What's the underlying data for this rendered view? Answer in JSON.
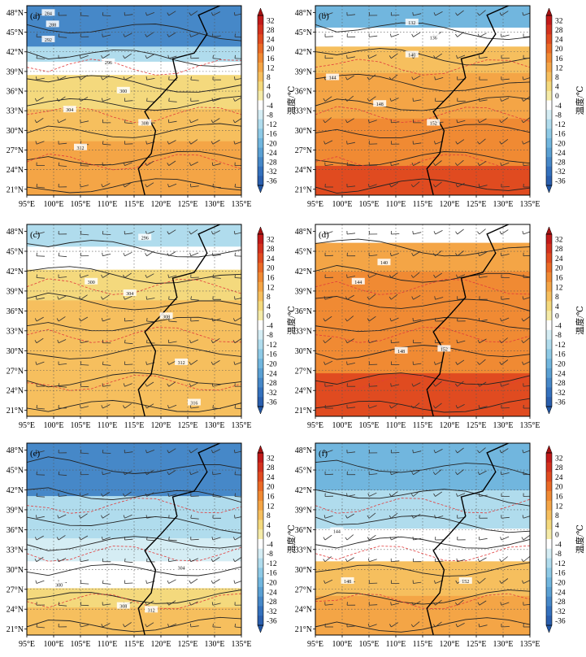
{
  "figure": {
    "colorbar_unit": "温度/℃",
    "colorbar_ticks": [
      32,
      28,
      24,
      20,
      16,
      12,
      8,
      4,
      0,
      -4,
      -8,
      -12,
      -16,
      -20,
      -24,
      -28,
      -32,
      -36
    ],
    "colorbar_colors": [
      "#c21a1a",
      "#d3311e",
      "#e04b20",
      "#ea6a26",
      "#f08a33",
      "#f4a546",
      "#f6bf5e",
      "#f4d97d",
      "#f5eba8",
      "#ffffff",
      "#d5edf4",
      "#b0dced",
      "#8ecae6",
      "#71b6de",
      "#5aa0d3",
      "#4688c8",
      "#3471bd",
      "#2a5fae"
    ]
  },
  "chart_data": [
    {
      "type": "heatmap",
      "panel_label": "(a)",
      "x_ticks": [
        "95°E",
        "100°E",
        "105°E",
        "110°E",
        "115°E",
        "120°E",
        "125°E",
        "130°E",
        "135°E"
      ],
      "y_ticks": [
        "48°N",
        "45°N",
        "42°N",
        "39°N",
        "36°N",
        "33°N",
        "30°N",
        "27°N",
        "24°N",
        "21°N"
      ],
      "contour_labels": [
        "284",
        "288",
        "292",
        "296",
        "300",
        "304",
        "308",
        "312"
      ]
    },
    {
      "type": "heatmap",
      "panel_label": "(b)",
      "x_ticks": [
        "95°E",
        "100°E",
        "105°E",
        "110°E",
        "115°E",
        "120°E",
        "125°E",
        "130°E",
        "135°E"
      ],
      "y_ticks": [
        "48°N",
        "45°N",
        "42°N",
        "39°N",
        "36°N",
        "33°N",
        "30°N",
        "27°N",
        "24°N",
        "21°N"
      ],
      "contour_labels": [
        "132",
        "136",
        "140",
        "144",
        "148",
        "152"
      ]
    },
    {
      "type": "heatmap",
      "panel_label": "(c)",
      "x_ticks": [
        "95°E",
        "100°E",
        "105°E",
        "110°E",
        "115°E",
        "120°E",
        "125°E",
        "130°E",
        "135°E"
      ],
      "y_ticks": [
        "48°N",
        "45°N",
        "42°N",
        "39°N",
        "36°N",
        "33°N",
        "30°N",
        "27°N",
        "24°N",
        "21°N"
      ],
      "contour_labels": [
        "296",
        "300",
        "304",
        "308",
        "312",
        "316"
      ]
    },
    {
      "type": "heatmap",
      "panel_label": "(d)",
      "x_ticks": [
        "95°E",
        "100°E",
        "105°E",
        "110°E",
        "115°E",
        "120°E",
        "125°E",
        "130°E",
        "135°E"
      ],
      "y_ticks": [
        "48°N",
        "45°N",
        "42°N",
        "39°N",
        "36°N",
        "33°N",
        "30°N",
        "27°N",
        "24°N",
        "21°N"
      ],
      "contour_labels": [
        "140",
        "144",
        "148",
        "152"
      ]
    },
    {
      "type": "heatmap",
      "panel_label": "(e)",
      "x_ticks": [
        "95°E",
        "100°E",
        "105°E",
        "110°E",
        "115°E",
        "120°E",
        "125°E",
        "130°E",
        "135°E"
      ],
      "y_ticks": [
        "48°N",
        "45°N",
        "42°N",
        "39°N",
        "36°N",
        "33°N",
        "30°N",
        "27°N",
        "24°N",
        "21°N"
      ],
      "contour_labels": [
        "300",
        "304",
        "308",
        "312"
      ]
    },
    {
      "type": "heatmap",
      "panel_label": "(f)",
      "x_ticks": [
        "95°E",
        "100°E",
        "105°E",
        "110°E",
        "115°E",
        "120°E",
        "125°E",
        "130°E",
        "135°E"
      ],
      "y_ticks": [
        "48°N",
        "45°N",
        "42°N",
        "39°N",
        "36°N",
        "33°N",
        "30°N",
        "27°N",
        "24°N",
        "21°N"
      ],
      "contour_labels": [
        "144",
        "148",
        "152"
      ]
    }
  ]
}
